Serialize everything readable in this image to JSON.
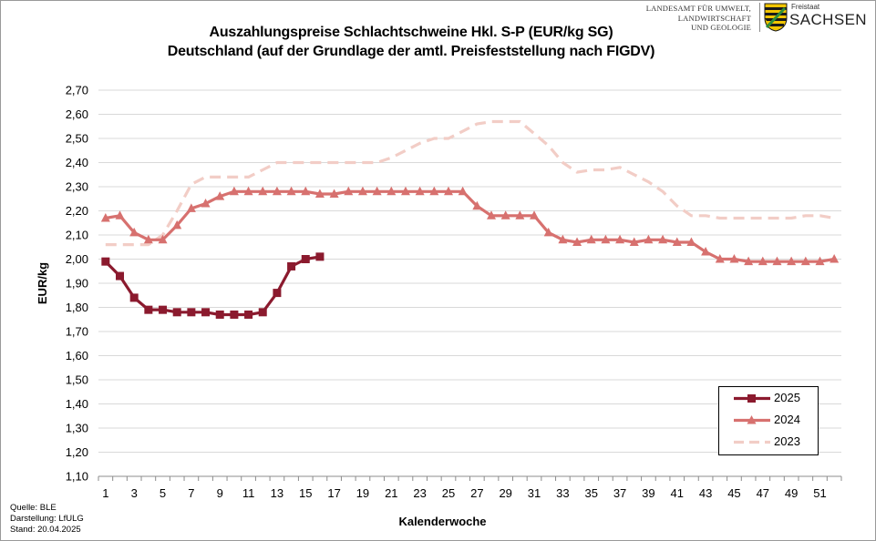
{
  "title_line1": "Auszahlungspreise Schlachtschweine Hkl. S-P (EUR/kg SG)",
  "title_line2": "Deutschland (auf der Grundlage der amtl. Preisfeststellung nach FIGDV)",
  "logo": {
    "agency_line1": "LANDESAMT FÜR UMWELT,",
    "agency_line2": "LANDWIRTSCHAFT",
    "agency_line3": "UND GEOLOGIE",
    "state_small": "Freistaat",
    "state_big": "SACHSEN",
    "crest_colors": [
      "#1a1a1a",
      "#f2c500",
      "#2f8f3a"
    ]
  },
  "source": {
    "quelle": "Quelle:  BLE",
    "darstellung": "Darstellung: LfULG",
    "stand": "Stand: 20.04.2025"
  },
  "chart_data": {
    "type": "line",
    "title": "Auszahlungspreise Schlachtschweine Hkl. S-P (EUR/kg SG) Deutschland (auf der Grundlage der amtl. Preisfeststellung nach FIGDV)",
    "xlabel": "Kalenderwoche",
    "ylabel": "EUR/kg",
    "xlim": [
      1,
      52
    ],
    "ylim": [
      1.1,
      2.7
    ],
    "y_ticks": [
      "1,10",
      "1,20",
      "1,30",
      "1,40",
      "1,50",
      "1,60",
      "1,70",
      "1,80",
      "1,90",
      "2,00",
      "2,10",
      "2,20",
      "2,30",
      "2,40",
      "2,50",
      "2,60",
      "2,70"
    ],
    "x_ticks": [
      "1",
      "3",
      "5",
      "7",
      "9",
      "11",
      "13",
      "15",
      "17",
      "19",
      "21",
      "23",
      "25",
      "27",
      "29",
      "31",
      "33",
      "35",
      "37",
      "39",
      "41",
      "43",
      "45",
      "47",
      "49",
      "51"
    ],
    "grid": "horizontal",
    "legend_position": "bottom-right",
    "series": [
      {
        "name": "2025",
        "color": "#8b1a2e",
        "marker": "square",
        "style": "solid",
        "x": [
          1,
          2,
          3,
          4,
          5,
          6,
          7,
          8,
          9,
          10,
          11,
          12,
          13,
          14,
          15,
          16
        ],
        "values": [
          1.99,
          1.93,
          1.84,
          1.79,
          1.79,
          1.78,
          1.78,
          1.78,
          1.77,
          1.77,
          1.77,
          1.78,
          1.86,
          1.97,
          2.0,
          2.01
        ]
      },
      {
        "name": "2024",
        "color": "#d7716f",
        "marker": "triangle",
        "style": "solid",
        "x": [
          1,
          2,
          3,
          4,
          5,
          6,
          7,
          8,
          9,
          10,
          11,
          12,
          13,
          14,
          15,
          16,
          17,
          18,
          19,
          20,
          21,
          22,
          23,
          24,
          25,
          26,
          27,
          28,
          29,
          30,
          31,
          32,
          33,
          34,
          35,
          36,
          37,
          38,
          39,
          40,
          41,
          42,
          43,
          44,
          45,
          46,
          47,
          48,
          49,
          50,
          51,
          52
        ],
        "values": [
          2.17,
          2.18,
          2.11,
          2.08,
          2.08,
          2.14,
          2.21,
          2.23,
          2.26,
          2.28,
          2.28,
          2.28,
          2.28,
          2.28,
          2.28,
          2.27,
          2.27,
          2.28,
          2.28,
          2.28,
          2.28,
          2.28,
          2.28,
          2.28,
          2.28,
          2.28,
          2.22,
          2.18,
          2.18,
          2.18,
          2.18,
          2.11,
          2.08,
          2.07,
          2.08,
          2.08,
          2.08,
          2.07,
          2.08,
          2.08,
          2.07,
          2.07,
          2.03,
          2.0,
          2.0,
          1.99,
          1.99,
          1.99,
          1.99,
          1.99,
          1.99,
          2.0
        ]
      },
      {
        "name": "2023",
        "color": "#f2cdc6",
        "marker": "none",
        "style": "dashed",
        "x": [
          1,
          2,
          3,
          4,
          5,
          6,
          7,
          8,
          9,
          10,
          11,
          12,
          13,
          14,
          15,
          16,
          17,
          18,
          19,
          20,
          21,
          22,
          23,
          24,
          25,
          26,
          27,
          28,
          29,
          30,
          31,
          32,
          33,
          34,
          35,
          36,
          37,
          38,
          39,
          40,
          41,
          42,
          43,
          44,
          45,
          46,
          47,
          48,
          49,
          50,
          51,
          52
        ],
        "values": [
          2.06,
          2.06,
          2.06,
          2.06,
          2.1,
          2.2,
          2.31,
          2.34,
          2.34,
          2.34,
          2.34,
          2.37,
          2.4,
          2.4,
          2.4,
          2.4,
          2.4,
          2.4,
          2.4,
          2.4,
          2.42,
          2.45,
          2.48,
          2.5,
          2.5,
          2.53,
          2.56,
          2.57,
          2.57,
          2.57,
          2.52,
          2.47,
          2.4,
          2.36,
          2.37,
          2.37,
          2.38,
          2.35,
          2.32,
          2.28,
          2.22,
          2.18,
          2.18,
          2.17,
          2.17,
          2.17,
          2.17,
          2.17,
          2.17,
          2.18,
          2.18,
          2.17
        ]
      }
    ]
  }
}
